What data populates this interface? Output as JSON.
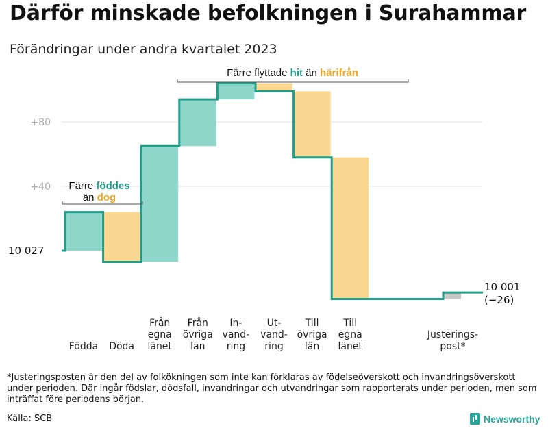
{
  "title": "Därför minskade befolkningen i Surahammar",
  "subtitle": "Förändringar under andra kvartalet 2023",
  "footnote": "*Justeringsposten är den del av folkökningen som inte kan förklaras av födelseöverskott och invandringsöverskott under perioden. Där ingår födslar, dödsfall, invandringar och utvandringar som rapporterats under perioden, men som inträffat före periodens början.",
  "source": "Källa: SCB",
  "brand": "Newsworthy",
  "colors": {
    "gain": "#8fd6cb",
    "loss": "#fad891",
    "line": "#1f9e89",
    "adjustment": "#c8c8c8",
    "hit": "#1f9e89",
    "harifran": "#f0a421"
  },
  "annotations": {
    "births": {
      "prefix": "Färre",
      "teal": "föddes",
      "mid": "än",
      "orange": "dog"
    },
    "moves": {
      "prefix": "Färre flyttade",
      "teal": "hit",
      "mid": "än",
      "orange": "härifrån"
    }
  },
  "chart_data": {
    "type": "waterfall",
    "title": "Därför minskade befolkningen i Surahammar",
    "subtitle": "Förändringar under andra kvartalet 2023",
    "start_value": 10027,
    "start_label": "10  027",
    "end_value": 10001,
    "end_label": [
      "10 001",
      "(−26)"
    ],
    "y_ticks": [
      {
        "value": 40,
        "label": "+40"
      },
      {
        "value": 80,
        "label": "+80"
      }
    ],
    "y_range_relative": [
      -33,
      102
    ],
    "categories": [
      {
        "label": [
          "Födda"
        ],
        "delta": 24,
        "kind": "gain"
      },
      {
        "label": [
          "Döda"
        ],
        "delta": -31,
        "kind": "loss"
      },
      {
        "label": [
          "Från",
          "egna",
          "länet"
        ],
        "delta": 72,
        "kind": "gain"
      },
      {
        "label": [
          "Från",
          "övriga",
          "län"
        ],
        "delta": 29,
        "kind": "gain"
      },
      {
        "label": [
          "In-",
          "vand-",
          "ring"
        ],
        "delta": 10,
        "kind": "gain"
      },
      {
        "label": [
          "Ut-",
          "vand-",
          "ring"
        ],
        "delta": -5,
        "kind": "loss"
      },
      {
        "label": [
          "Till",
          "övriga",
          "län"
        ],
        "delta": -41,
        "kind": "loss"
      },
      {
        "label": [
          "Till",
          "egna",
          "länet"
        ],
        "delta": -88,
        "kind": "loss"
      },
      {
        "label": [
          "Justerings-",
          "post*"
        ],
        "delta": 4,
        "kind": "adjustment"
      }
    ]
  }
}
